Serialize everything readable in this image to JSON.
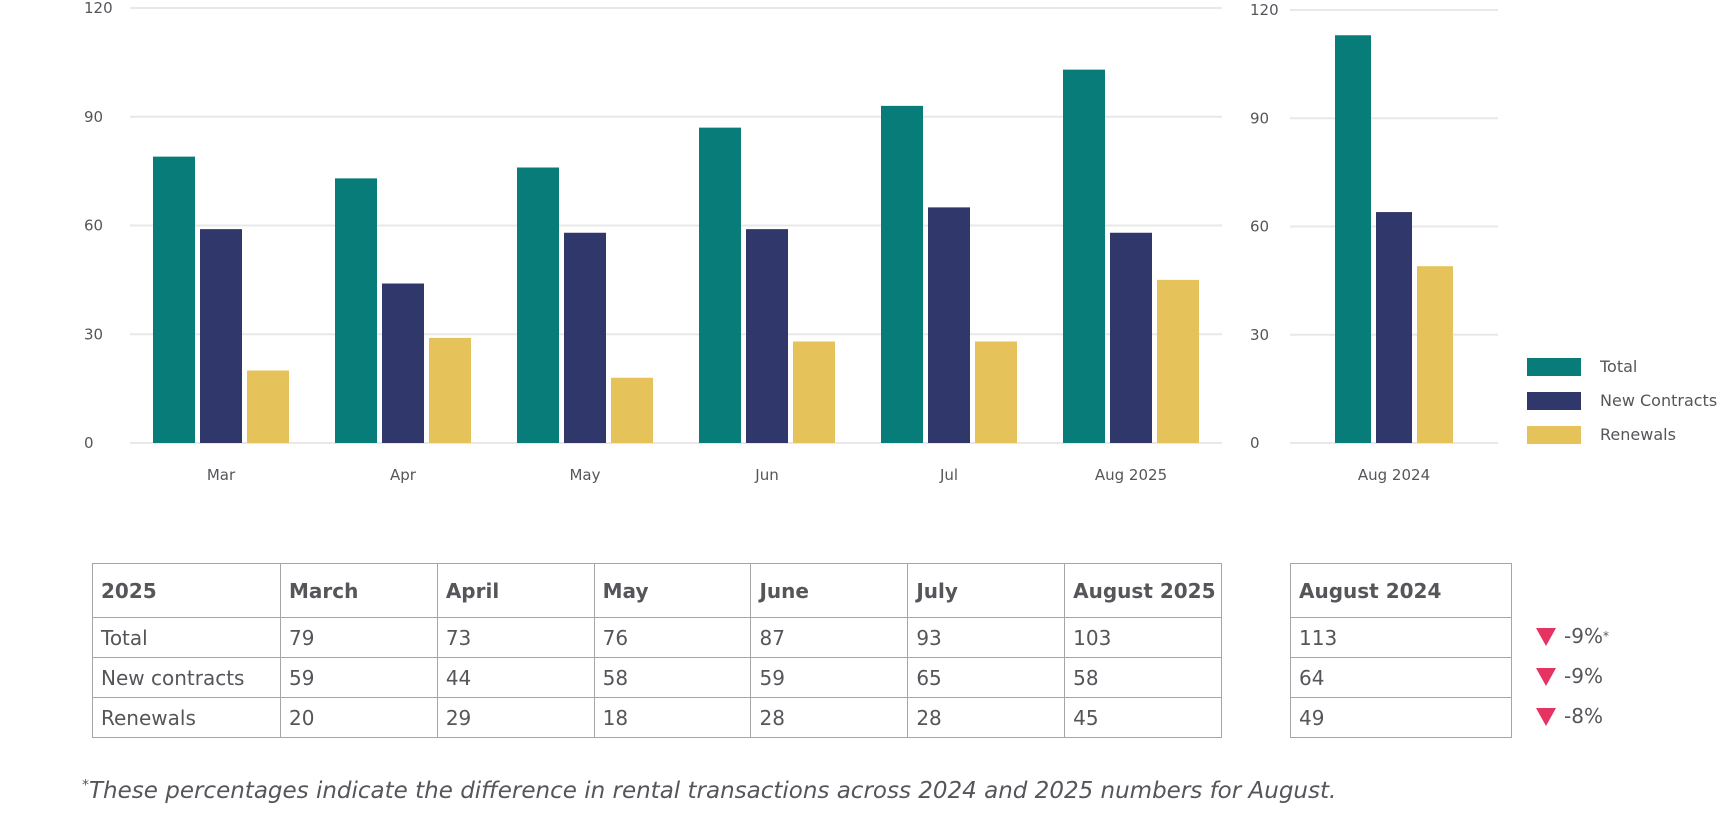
{
  "colors": {
    "total": "#077c78",
    "new_contracts": "#30386b",
    "renewals": "#e6c25a",
    "decrease": "#e63462",
    "grid": "#e8e8e8"
  },
  "chart_data": [
    {
      "type": "bar",
      "categories": [
        "Mar",
        "Apr",
        "May",
        "Jun",
        "Jul",
        "Aug 2025"
      ],
      "series": [
        {
          "name": "Total",
          "values": [
            79,
            73,
            76,
            87,
            93,
            103
          ]
        },
        {
          "name": "New Contracts",
          "values": [
            59,
            44,
            58,
            59,
            65,
            58
          ]
        },
        {
          "name": "Renewals",
          "values": [
            20,
            29,
            18,
            28,
            28,
            45
          ]
        }
      ],
      "yticks": [
        0,
        30,
        60,
        90,
        120
      ],
      "ylim": [
        0,
        120
      ],
      "grid": true
    },
    {
      "type": "bar",
      "categories": [
        "Aug 2024"
      ],
      "series": [
        {
          "name": "Total",
          "values": [
            113
          ]
        },
        {
          "name": "New Contracts",
          "values": [
            64
          ]
        },
        {
          "name": "Renewals",
          "values": [
            49
          ]
        }
      ],
      "yticks": [
        0,
        30,
        60,
        90,
        120
      ],
      "ylim": [
        0,
        120
      ],
      "grid": true,
      "legend": "right"
    }
  ],
  "legend": [
    "Total",
    "New Contracts",
    "Renewals"
  ],
  "table_2025": {
    "headers": [
      "2025",
      "March",
      "April",
      "May",
      "June",
      "July",
      "August 2025"
    ],
    "rows": [
      [
        "Total",
        "79",
        "73",
        "76",
        "87",
        "93",
        "103"
      ],
      [
        "New contracts",
        "59",
        "44",
        "58",
        "59",
        "65",
        "58"
      ],
      [
        "Renewals",
        "20",
        "29",
        "18",
        "28",
        "28",
        "45"
      ]
    ]
  },
  "table_2024": {
    "header": "August 2024",
    "rows": [
      "113",
      "64",
      "49"
    ]
  },
  "changes": [
    {
      "value": "-9%",
      "mark": "*"
    },
    {
      "value": "-9%",
      "mark": ""
    },
    {
      "value": "-8%",
      "mark": ""
    }
  ],
  "footnote": {
    "mark": "*",
    "text": "These percentages indicate the difference in rental transactions across 2024 and 2025 numbers for August."
  }
}
